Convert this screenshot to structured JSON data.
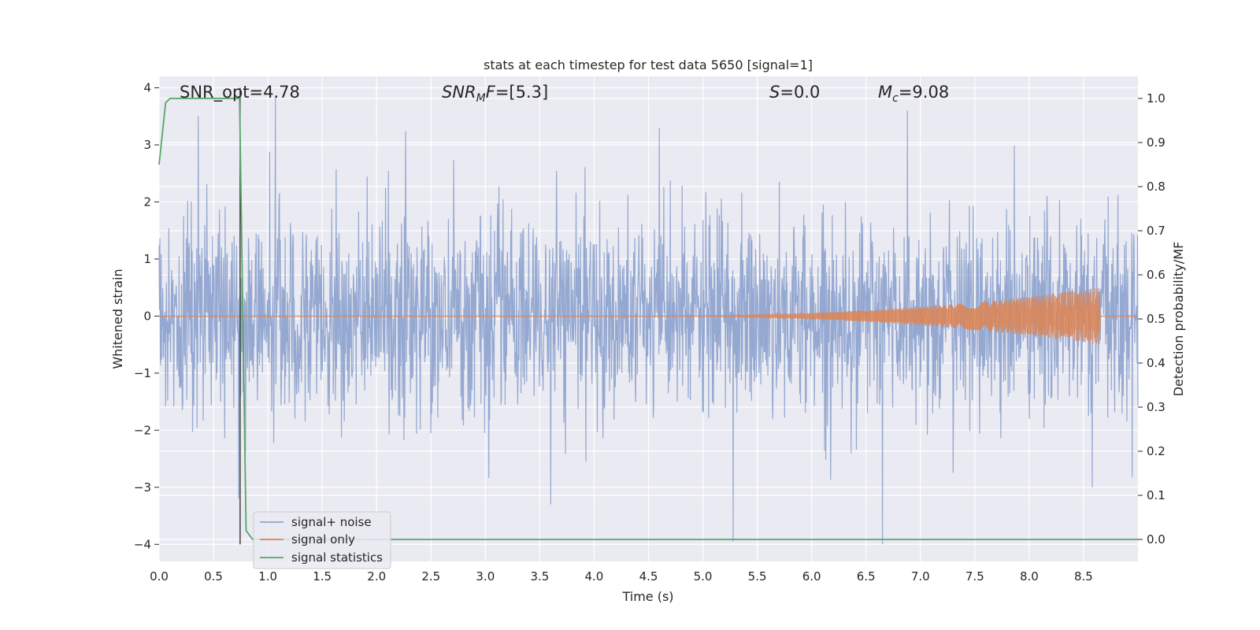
{
  "chart_data": {
    "type": "line",
    "title": "stats at each timestep for test data 5650 [signal=1]",
    "xlabel": "Time (s)",
    "ylabel": "Whitened strain",
    "y2label": "Detection probability/MF",
    "xlim": [
      0,
      9.0
    ],
    "ylim": [
      -4.3,
      4.2
    ],
    "y2lim": [
      -0.05,
      1.05
    ],
    "x_ticks": [
      "0.0",
      "0.5",
      "1.0",
      "1.5",
      "2.0",
      "2.5",
      "3.0",
      "3.5",
      "4.0",
      "4.5",
      "5.0",
      "5.5",
      "6.0",
      "6.5",
      "7.0",
      "7.5",
      "8.0",
      "8.5"
    ],
    "y_ticks": [
      "4",
      "3",
      "2",
      "1",
      "0",
      "−1",
      "−2",
      "−3",
      "−4"
    ],
    "y2_ticks": [
      "1.0",
      "0.9",
      "0.8",
      "0.7",
      "0.6",
      "0.5",
      "0.4",
      "0.3",
      "0.2",
      "0.1",
      "0.0"
    ],
    "grid": true,
    "legend_position": "lower-left",
    "annotations": {
      "snr_opt": "SNR_opt=4.78",
      "snr_mf_main": "SNR",
      "snr_mf_sub": "M",
      "snr_mf_rest": "F=[5.3]",
      "s_main": "S",
      "s_rest": "=0.0",
      "mc_main": "M",
      "mc_sub": "c",
      "mc_rest": "=9.08"
    },
    "series": [
      {
        "name": "signal+ noise",
        "color": "#8fa4cf",
        "description_values": {
          "noise_std": 0.85,
          "noise_peak_range": [
            -4.0,
            3.85
          ],
          "notable_spikes": [
            {
              "x": 0.36,
              "y": 3.5
            },
            {
              "x": 1.07,
              "y": 3.85
            },
            {
              "x": 0.73,
              "y": -3.2
            },
            {
              "x": 3.6,
              "y": -3.3
            },
            {
              "x": 4.6,
              "y": 3.3
            },
            {
              "x": 5.28,
              "y": -3.95
            },
            {
              "x": 6.65,
              "y": -4.0
            },
            {
              "x": 6.88,
              "y": 3.6
            },
            {
              "x": 8.58,
              "y": -3.0
            }
          ]
        }
      },
      {
        "name": "signal only",
        "color": "#dd8452",
        "chirp": {
          "start": 4.5,
          "end": 8.65,
          "peak_amplitude": 0.5
        }
      },
      {
        "name": "signal statistics",
        "color": "#55a868",
        "axis": "right",
        "x": [
          0.0,
          0.06,
          0.1,
          0.2,
          0.4,
          0.6,
          0.7,
          0.74,
          0.8,
          0.86,
          0.92,
          1.0,
          2.0,
          4.0,
          6.0,
          8.0,
          9.0
        ],
        "y": [
          0.85,
          0.99,
          1.0,
          1.0,
          1.0,
          1.0,
          1.0,
          1.0,
          0.02,
          0.0,
          0.0,
          0.0,
          0.0,
          0.0,
          0.0,
          0.0,
          0.0
        ]
      }
    ],
    "vertical_marker": {
      "x": 0.745,
      "y_from": -4.0,
      "y_to": 4.0
    }
  }
}
